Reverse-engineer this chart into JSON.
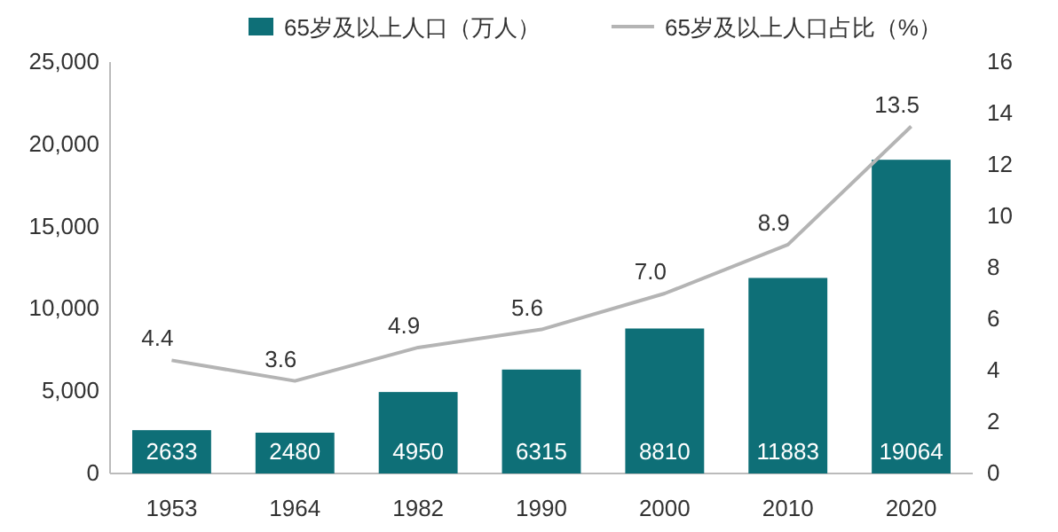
{
  "chart_data": {
    "type": "bar",
    "categories": [
      "1953",
      "1964",
      "1982",
      "1990",
      "2000",
      "2010",
      "2020"
    ],
    "series": [
      {
        "name": "65岁及以上人口（万人）",
        "color": "#0e6f77",
        "values": [
          2633,
          2480,
          4950,
          6315,
          8810,
          11883,
          19064
        ],
        "value_labels": [
          "2633",
          "2480",
          "4950",
          "6315",
          "8810",
          "11883",
          "19064"
        ]
      },
      {
        "name": "65岁及以上人口占比（%）",
        "type": "line",
        "axis": "y2",
        "color": "#b4b4b4",
        "values": [
          4.4,
          3.6,
          4.9,
          5.6,
          7.0,
          8.9,
          13.5
        ],
        "value_labels": [
          "4.4",
          "3.6",
          "4.9",
          "5.6",
          "7.0",
          "8.9",
          "13.5"
        ]
      }
    ],
    "ylim": [
      0,
      25000
    ],
    "yticks": [
      0,
      {
        "value": 5000,
        "label": "5,000"
      },
      {
        "value": 10000,
        "label": "10,000"
      },
      {
        "value": 15000,
        "label": "15,000"
      },
      {
        "value": 20000,
        "label": "20,000"
      },
      {
        "value": 25000,
        "label": "25,000"
      }
    ],
    "y2lim": [
      0,
      16
    ],
    "y2ticks": [
      0,
      2,
      4,
      6,
      8,
      10,
      12,
      14,
      16
    ],
    "legend": "top",
    "grid": false,
    "marker": "none",
    "line_style": "solid"
  }
}
